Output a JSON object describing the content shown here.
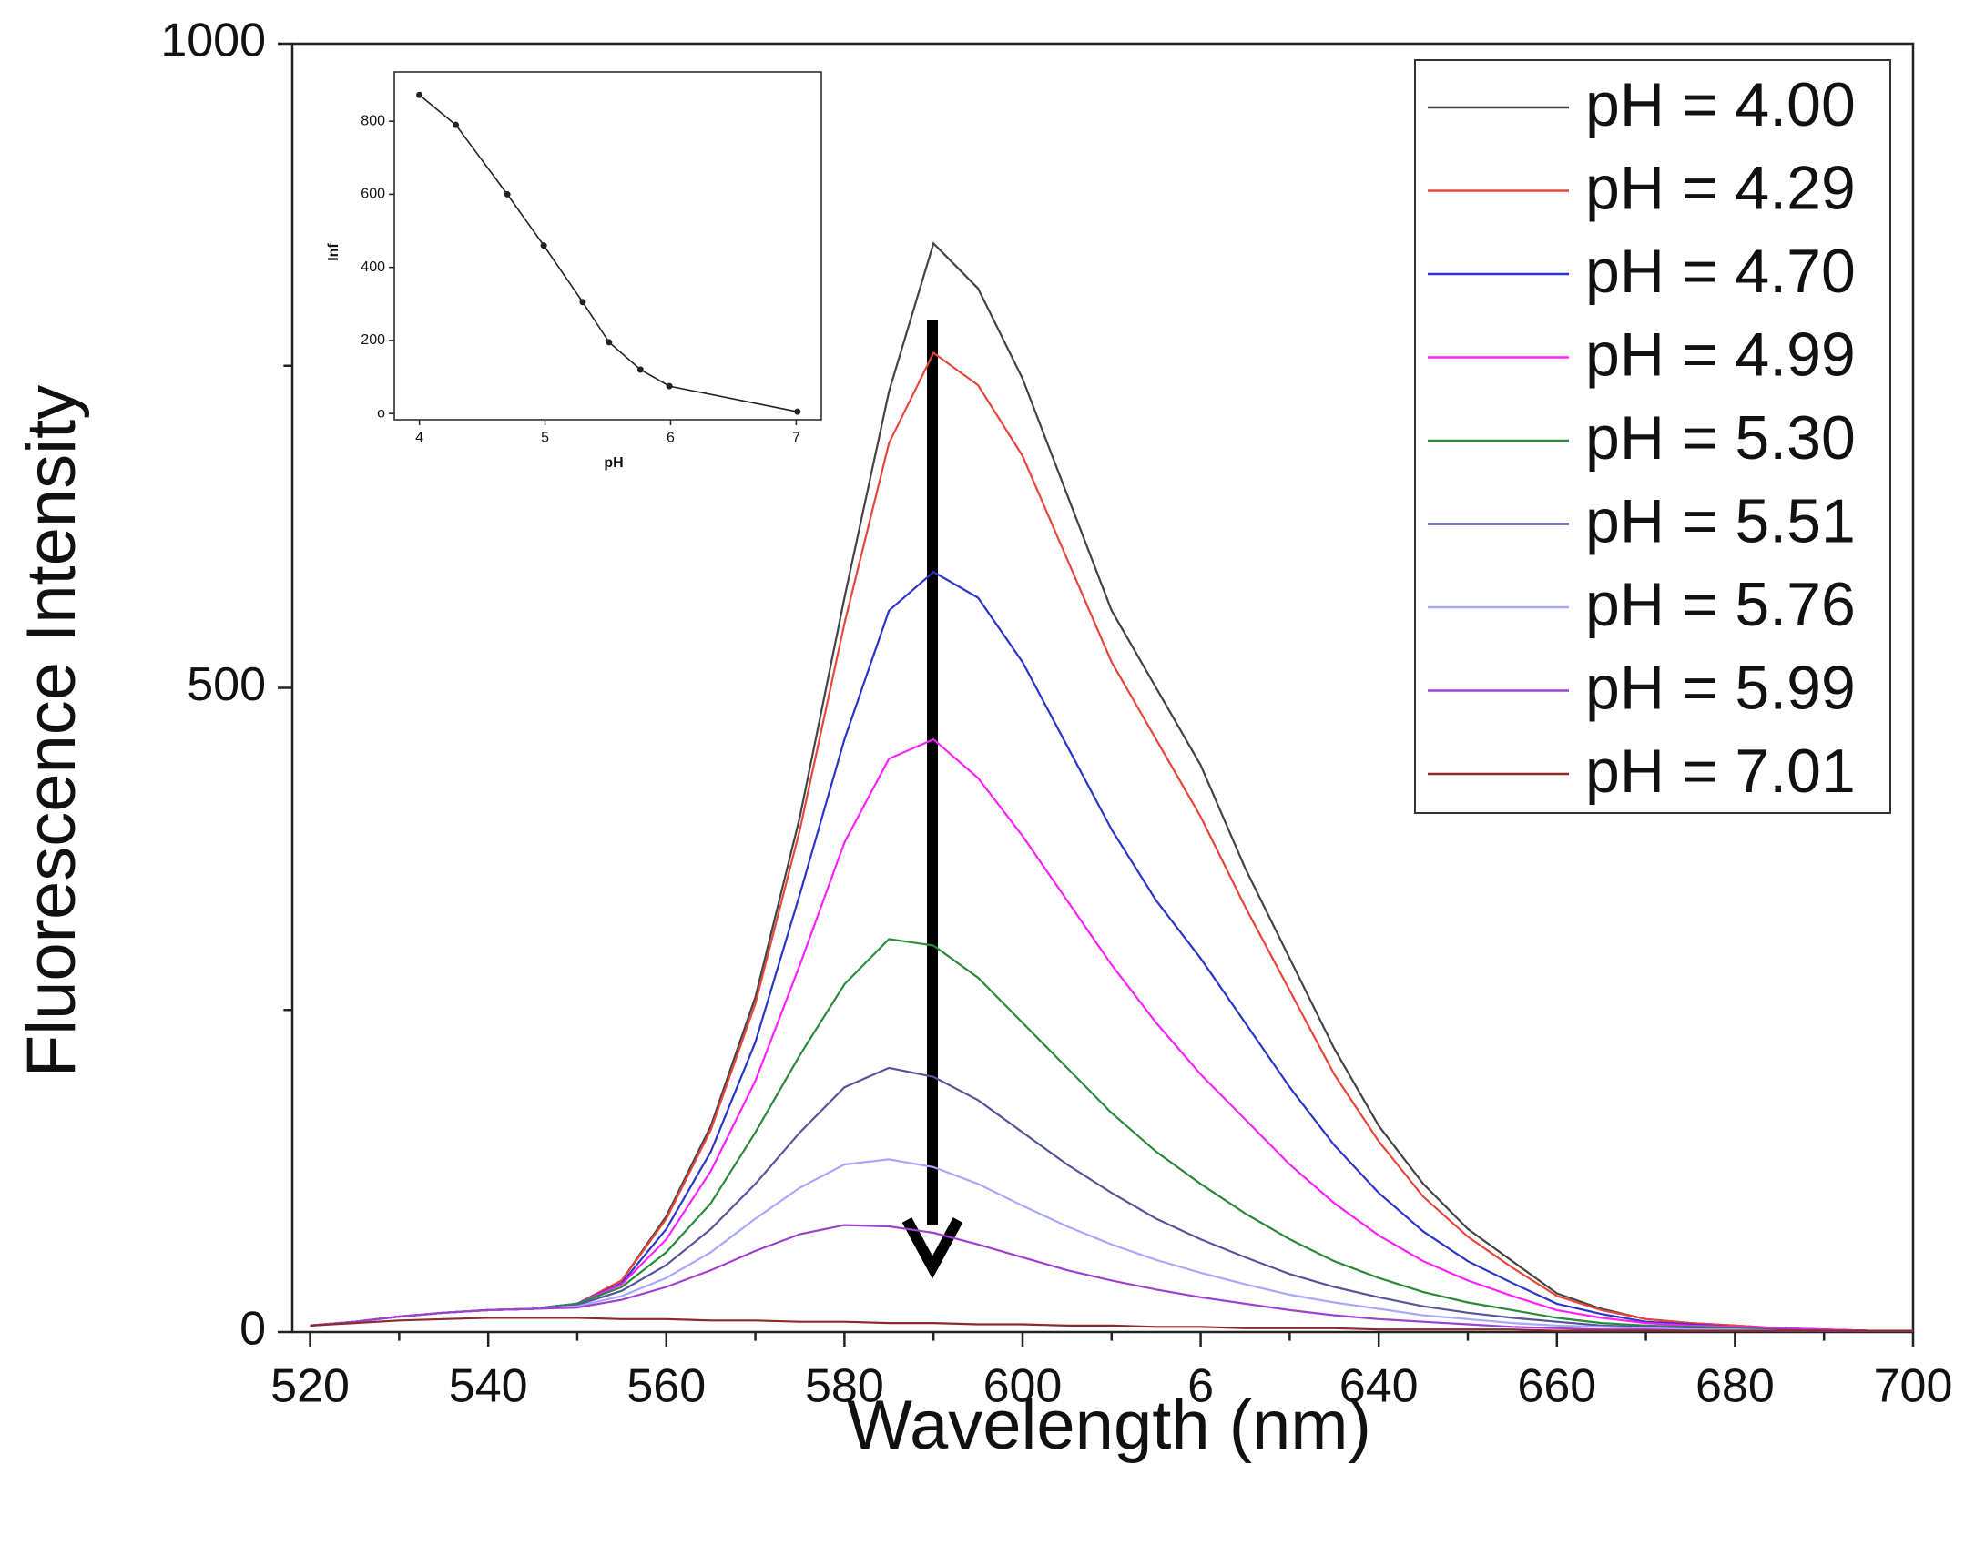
{
  "chart_data": [
    {
      "type": "line",
      "xlabel": "Wavelength (nm)",
      "ylabel": "Fluorescence Intensity",
      "x": [
        520,
        525,
        530,
        535,
        540,
        545,
        550,
        555,
        560,
        565,
        570,
        575,
        580,
        585,
        590,
        595,
        600,
        605,
        610,
        615,
        620,
        625,
        630,
        635,
        640,
        645,
        650,
        655,
        660,
        665,
        670,
        675,
        680,
        685,
        690,
        695,
        700
      ],
      "xlim": [
        518,
        700
      ],
      "ylim": [
        0,
        1000
      ],
      "xticks": [
        520,
        540,
        560,
        580,
        600,
        {
          "value": 620,
          "label": "6"
        },
        640,
        660,
        680,
        700
      ],
      "xminor_ticks": [
        530,
        550,
        570,
        590,
        610,
        630,
        650,
        670,
        690
      ],
      "yticks": [
        0,
        500,
        1000
      ],
      "yminor_ticks": [
        250,
        750
      ],
      "legend": "upper right",
      "series": [
        {
          "name": "pH = 4.00",
          "color": "#444444",
          "values": [
            5,
            8,
            12,
            15,
            17,
            18,
            22,
            40,
            90,
            160,
            260,
            400,
            570,
            730,
            845,
            810,
            740,
            650,
            560,
            500,
            440,
            360,
            290,
            220,
            160,
            115,
            80,
            55,
            30,
            18,
            10,
            7,
            5,
            3,
            2,
            1,
            1
          ]
        },
        {
          "name": "pH = 4.29",
          "color": "#e8463a",
          "values": [
            5,
            8,
            12,
            15,
            17,
            18,
            22,
            40,
            88,
            157,
            255,
            390,
            550,
            690,
            760,
            735,
            680,
            600,
            520,
            460,
            400,
            330,
            265,
            200,
            148,
            105,
            74,
            50,
            28,
            17,
            10,
            7,
            5,
            3,
            2,
            1,
            1
          ]
        },
        {
          "name": "pH = 4.70",
          "color": "#2a36c8",
          "values": [
            5,
            8,
            12,
            15,
            17,
            18,
            22,
            38,
            80,
            140,
            225,
            340,
            460,
            560,
            590,
            570,
            520,
            455,
            390,
            335,
            290,
            240,
            190,
            145,
            108,
            78,
            55,
            38,
            22,
            14,
            8,
            6,
            4,
            3,
            2,
            1,
            1
          ]
        },
        {
          "name": "pH = 4.99",
          "color": "#ff20ff",
          "values": [
            5,
            8,
            12,
            15,
            17,
            18,
            22,
            37,
            72,
            125,
            195,
            285,
            380,
            445,
            460,
            430,
            385,
            335,
            285,
            240,
            200,
            165,
            130,
            100,
            75,
            55,
            40,
            28,
            17,
            11,
            7,
            5,
            4,
            3,
            2,
            1,
            1
          ]
        },
        {
          "name": "pH = 5.30",
          "color": "#2a8a3a",
          "values": [
            5,
            8,
            12,
            15,
            17,
            18,
            22,
            35,
            62,
            100,
            155,
            215,
            270,
            305,
            300,
            275,
            240,
            205,
            170,
            140,
            115,
            92,
            72,
            55,
            42,
            31,
            23,
            17,
            11,
            7,
            5,
            4,
            3,
            2,
            1,
            1,
            1
          ]
        },
        {
          "name": "pH = 5.51",
          "color": "#55559a",
          "values": [
            5,
            8,
            12,
            15,
            17,
            18,
            21,
            32,
            52,
            80,
            115,
            155,
            190,
            205,
            198,
            180,
            155,
            130,
            108,
            88,
            72,
            58,
            45,
            35,
            27,
            20,
            15,
            11,
            8,
            5,
            4,
            3,
            2,
            2,
            1,
            1,
            1
          ]
        },
        {
          "name": "pH = 5.76",
          "color": "#a8a8ff",
          "values": [
            5,
            8,
            12,
            15,
            17,
            18,
            20,
            28,
            42,
            62,
            88,
            112,
            130,
            134,
            128,
            115,
            98,
            82,
            68,
            56,
            46,
            37,
            29,
            23,
            18,
            13,
            10,
            7,
            5,
            4,
            3,
            2,
            2,
            1,
            1,
            1,
            1
          ]
        },
        {
          "name": "pH = 5.99",
          "color": "#a040d0",
          "values": [
            5,
            8,
            12,
            15,
            17,
            18,
            19,
            25,
            35,
            48,
            63,
            76,
            83,
            82,
            77,
            68,
            58,
            48,
            40,
            33,
            27,
            22,
            17,
            13,
            10,
            8,
            6,
            4,
            3,
            2,
            2,
            1,
            1,
            1,
            1,
            1,
            1
          ]
        },
        {
          "name": "pH = 7.01",
          "color": "#8a2a2a",
          "values": [
            5,
            7,
            9,
            10,
            11,
            11,
            11,
            10,
            10,
            9,
            9,
            8,
            8,
            7,
            7,
            6,
            6,
            5,
            5,
            4,
            4,
            3,
            3,
            3,
            2,
            2,
            2,
            2,
            1,
            1,
            1,
            1,
            1,
            1,
            1,
            1,
            1
          ]
        }
      ]
    },
    {
      "type": "line",
      "xlabel": "pH",
      "ylabel": "Inf",
      "x": [
        4.0,
        4.29,
        4.7,
        4.99,
        5.3,
        5.51,
        5.76,
        5.99,
        7.01
      ],
      "values": [
        872,
        790,
        600,
        460,
        305,
        195,
        120,
        75,
        5
      ],
      "color": "#222222",
      "xlim": [
        3.8,
        7.2
      ],
      "ylim": [
        -17,
        935
      ],
      "xticks": [
        4,
        5,
        6,
        7
      ],
      "yticks": [
        {
          "value": 0,
          "label": "o"
        },
        200,
        400,
        600,
        800
      ]
    }
  ]
}
